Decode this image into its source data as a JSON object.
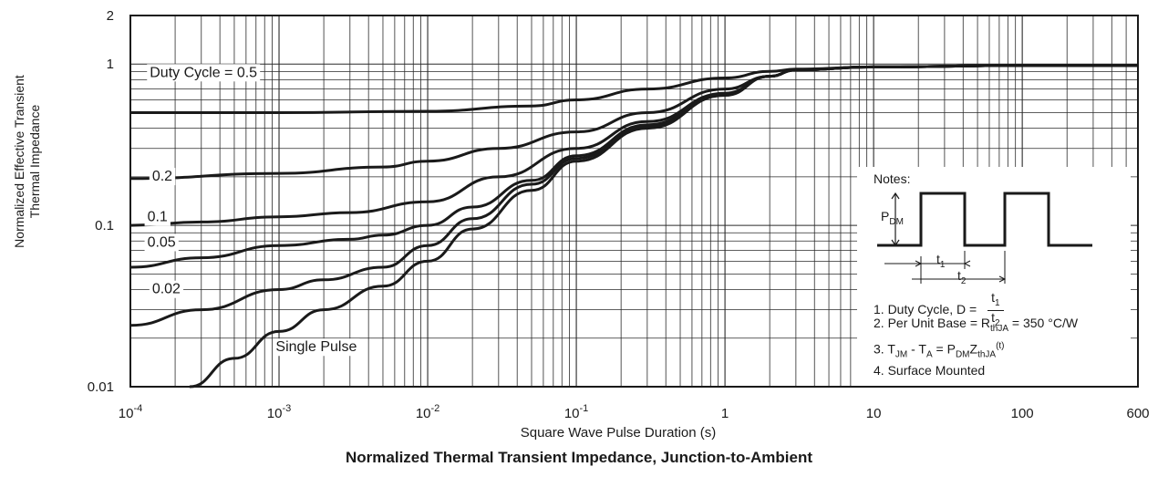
{
  "chart_data": {
    "type": "line",
    "title": "Normalized Thermal Transient Impedance, Junction-to-Ambient",
    "xlabel": "Square Wave Pulse Duration (s)",
    "ylabel_line1": "Normalized Effective Transient",
    "ylabel_line2": "Thermal Impedance",
    "x_scale": "log",
    "y_scale": "log",
    "xlim": [
      0.0001,
      600
    ],
    "ylim": [
      0.01,
      2
    ],
    "grid": true,
    "x_ticks": [
      {
        "value": 0.0001,
        "base": "10",
        "exp": "-4",
        "plain": ""
      },
      {
        "value": 0.001,
        "base": "10",
        "exp": "-3",
        "plain": ""
      },
      {
        "value": 0.01,
        "base": "10",
        "exp": "-2",
        "plain": ""
      },
      {
        "value": 0.1,
        "base": "10",
        "exp": "-1",
        "plain": ""
      },
      {
        "value": 1,
        "base": "",
        "exp": "",
        "plain": "1"
      },
      {
        "value": 10,
        "base": "",
        "exp": "",
        "plain": "10"
      },
      {
        "value": 100,
        "base": "",
        "exp": "",
        "plain": "100"
      },
      {
        "value": 600,
        "base": "",
        "exp": "",
        "plain": "600"
      }
    ],
    "y_ticks": [
      {
        "value": 2,
        "label": "2"
      },
      {
        "value": 1,
        "label": "1"
      },
      {
        "value": 0.1,
        "label": "0.1"
      },
      {
        "value": 0.01,
        "label": "0.01"
      }
    ],
    "series": [
      {
        "name": "Duty Cycle = 0.5",
        "label_at": [
          0.000135,
          0.88
        ],
        "x": [
          0.0001,
          0.001,
          0.01,
          0.05,
          0.1,
          0.3,
          1,
          2,
          3,
          10,
          100,
          600
        ],
        "y": [
          0.5,
          0.5,
          0.51,
          0.55,
          0.6,
          0.7,
          0.82,
          0.9,
          0.93,
          0.96,
          0.98,
          0.98
        ]
      },
      {
        "name": "0.2",
        "label_at": [
          0.00014,
          0.2
        ],
        "x": [
          0.0001,
          0.001,
          0.005,
          0.01,
          0.03,
          0.1,
          0.3,
          1,
          2,
          3,
          10,
          100,
          600
        ],
        "y": [
          0.195,
          0.21,
          0.23,
          0.25,
          0.3,
          0.38,
          0.5,
          0.7,
          0.84,
          0.92,
          0.96,
          0.98,
          0.98
        ]
      },
      {
        "name": "0.1",
        "label_at": [
          0.00013,
          0.112
        ],
        "x": [
          0.0001,
          0.0003,
          0.001,
          0.003,
          0.01,
          0.03,
          0.1,
          0.3,
          1,
          2,
          3,
          10,
          100,
          600
        ],
        "y": [
          0.1,
          0.105,
          0.113,
          0.12,
          0.14,
          0.2,
          0.3,
          0.44,
          0.66,
          0.84,
          0.92,
          0.96,
          0.98,
          0.98
        ]
      },
      {
        "name": "0.05",
        "label_at": [
          0.00013,
          0.078
        ],
        "x": [
          0.0001,
          0.0003,
          0.001,
          0.003,
          0.005,
          0.01,
          0.02,
          0.05,
          0.1,
          0.3,
          1,
          2,
          3,
          10,
          100,
          600
        ],
        "y": [
          0.055,
          0.063,
          0.075,
          0.082,
          0.087,
          0.1,
          0.13,
          0.19,
          0.27,
          0.42,
          0.65,
          0.84,
          0.92,
          0.96,
          0.98,
          0.98
        ]
      },
      {
        "name": "0.02",
        "label_at": [
          0.00014,
          0.04
        ],
        "x": [
          0.0001,
          0.0003,
          0.001,
          0.002,
          0.005,
          0.01,
          0.02,
          0.05,
          0.1,
          0.3,
          1,
          2,
          3,
          10,
          100,
          600
        ],
        "y": [
          0.024,
          0.03,
          0.04,
          0.046,
          0.055,
          0.075,
          0.11,
          0.18,
          0.26,
          0.41,
          0.65,
          0.84,
          0.92,
          0.96,
          0.98,
          0.98
        ]
      },
      {
        "name": "Single Pulse",
        "label_at": [
          0.00095,
          0.0175
        ],
        "x": [
          0.00025,
          0.0005,
          0.001,
          0.002,
          0.005,
          0.01,
          0.02,
          0.05,
          0.1,
          0.3,
          1,
          2,
          3,
          10,
          100,
          600
        ],
        "y": [
          0.01,
          0.015,
          0.022,
          0.03,
          0.042,
          0.06,
          0.095,
          0.165,
          0.25,
          0.4,
          0.64,
          0.84,
          0.92,
          0.96,
          0.98,
          0.98
        ]
      }
    ]
  },
  "notes": {
    "heading": "Notes:",
    "pdm_main": "P",
    "pdm_sub": "DM",
    "t1_main": "t",
    "t1_sub": "1",
    "t2_main": "t",
    "t2_sub": "2",
    "note1_prefix": "1. Duty Cycle, D =",
    "note2_prefix": "2. Per Unit Base = R",
    "note2_sub": "thJA",
    "note2_suffix": " = 350 °C/W",
    "note3_a": "3. T",
    "note3_a_sub": "JM",
    "note3_b": " - T",
    "note3_b_sub": "A",
    "note3_c": " = P",
    "note3_c_sub": "DM",
    "note3_d": "Z",
    "note3_d_sub": "thJA",
    "note3_sup": "(t)",
    "note4": "4. Surface Mounted"
  }
}
